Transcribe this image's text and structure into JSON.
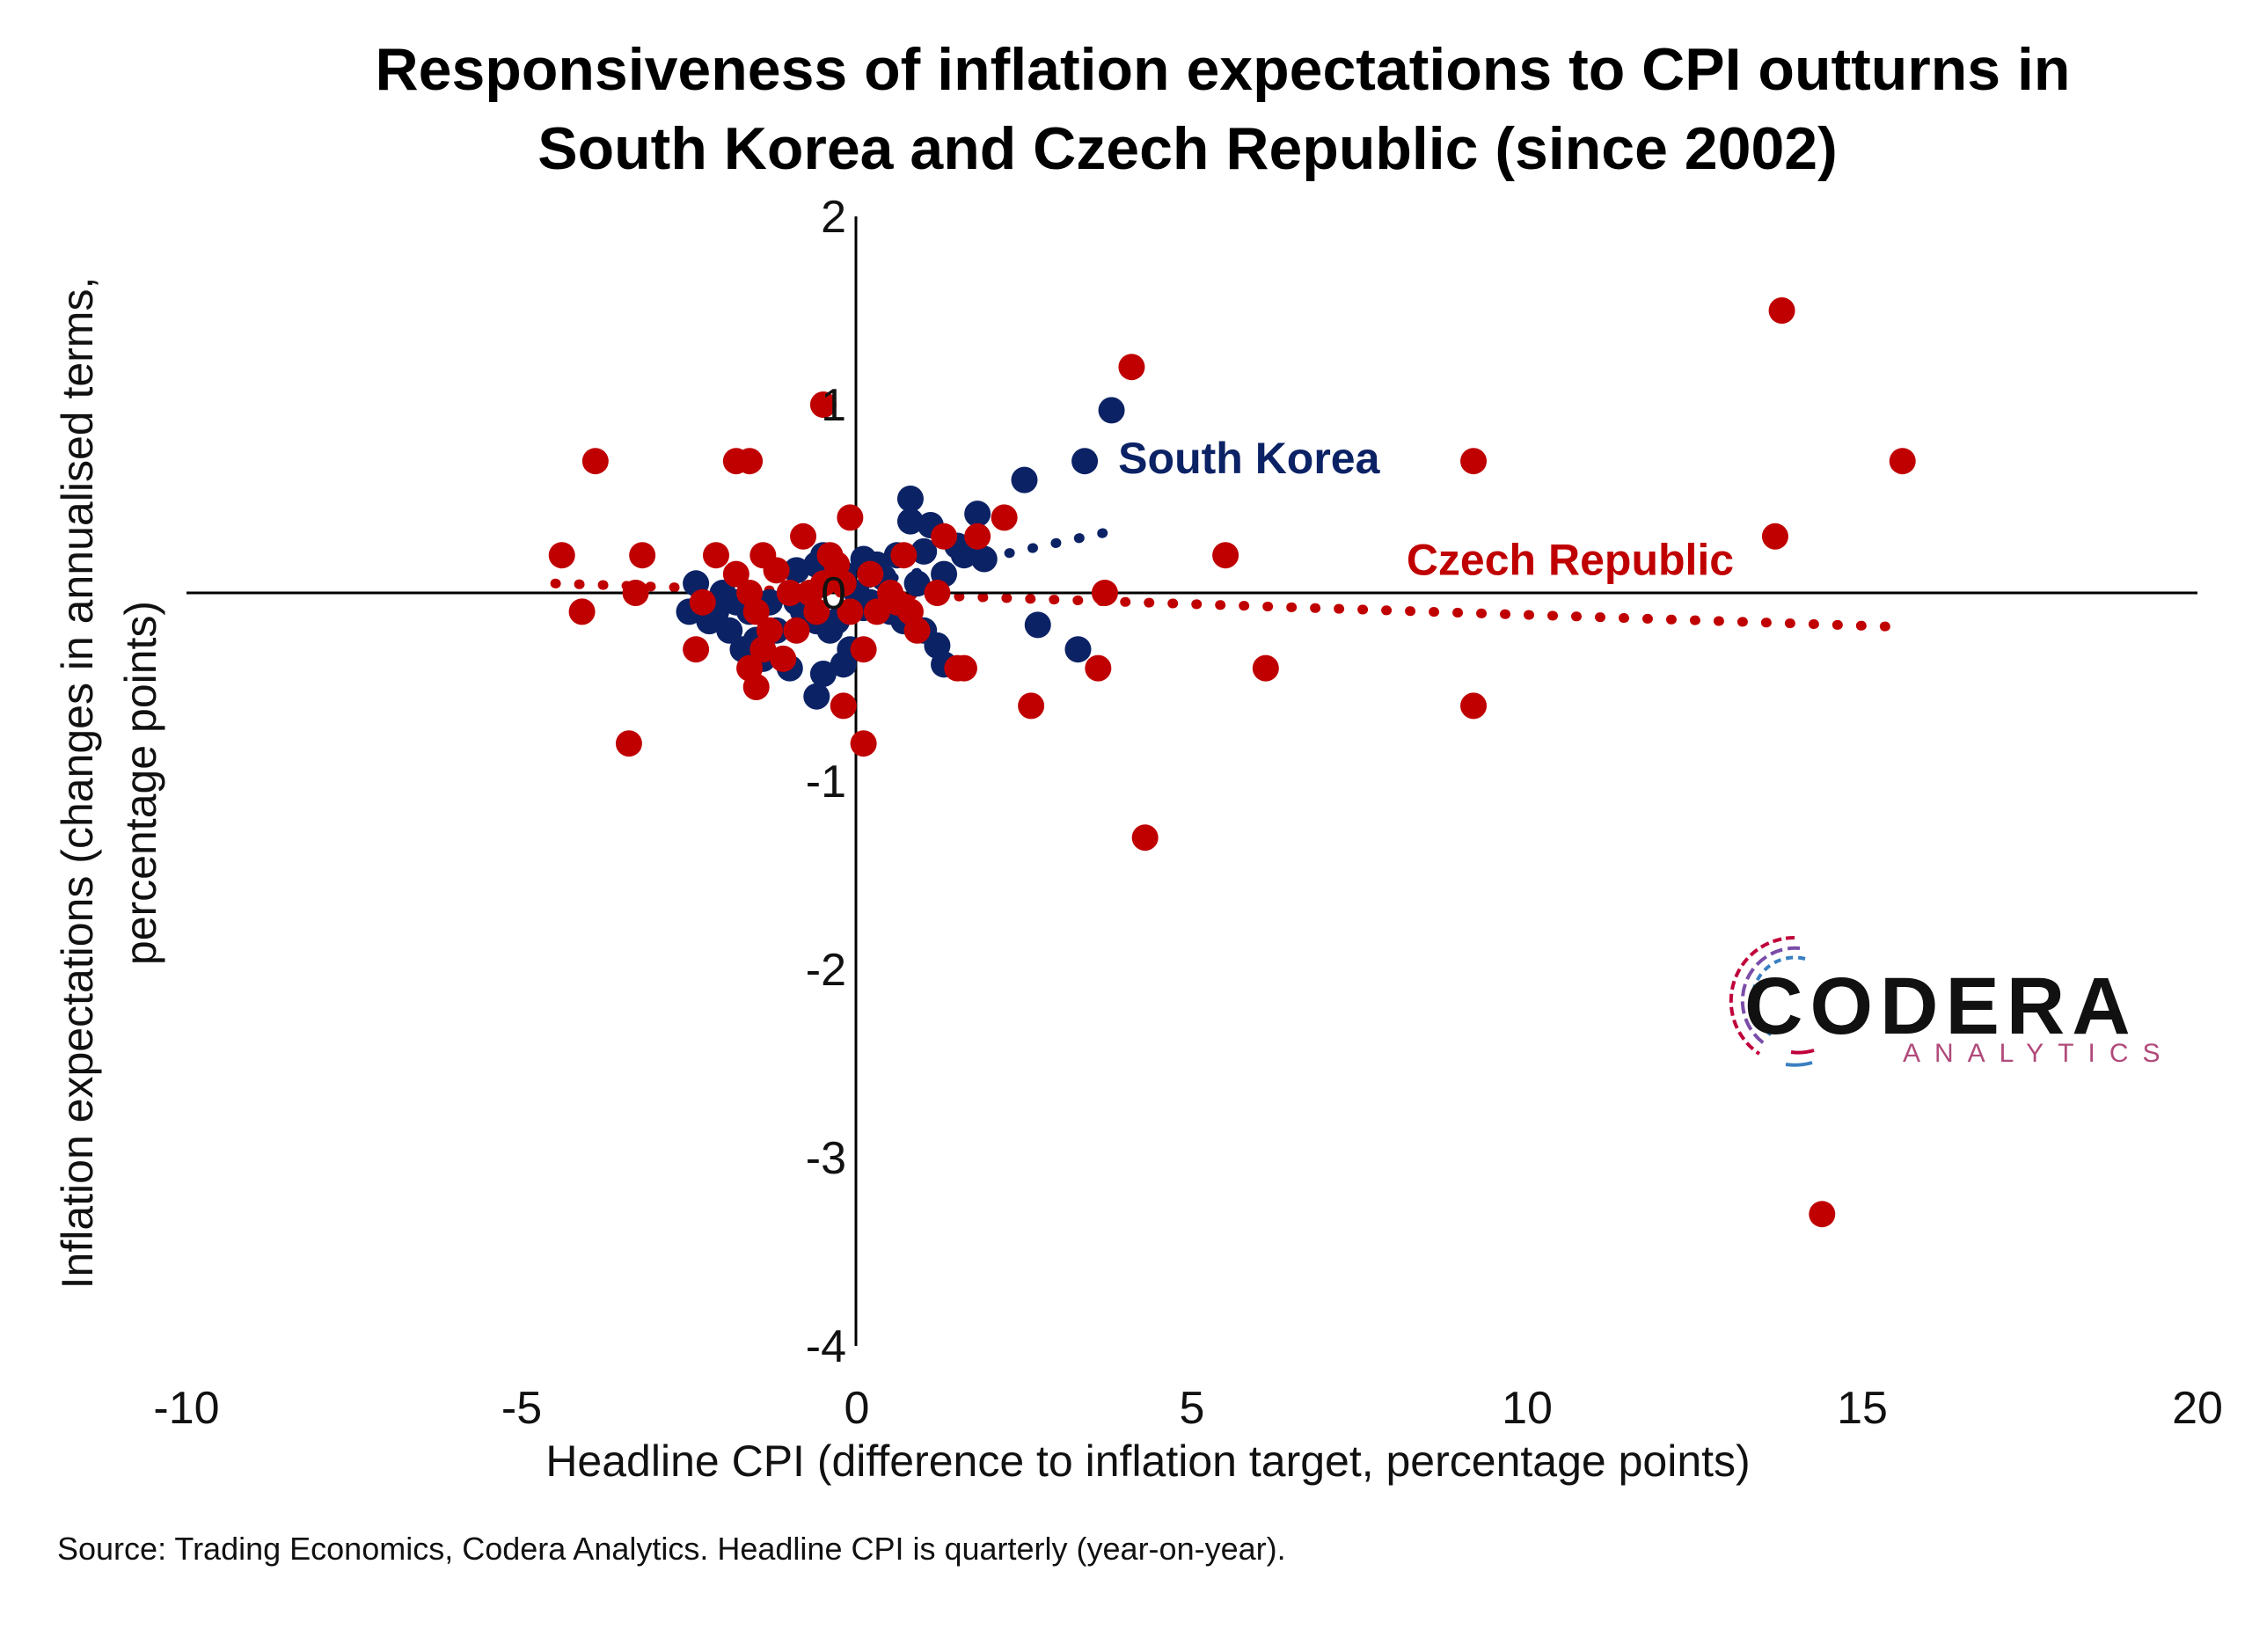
{
  "title_lines": [
    "Responsiveness of inflation expectations to CPI outturns in",
    "South Korea and Czech Republic (since 2002)"
  ],
  "source": "Source: Trading Economics, Codera Analytics. Headline CPI is quarterly (year-on-year).",
  "logo": {
    "name": "CODERA",
    "sub": "ANALYTICS"
  },
  "colors": {
    "south_korea": "#0b2265",
    "czech_republic": "#c00000",
    "logo_blue": "#3a7fc1",
    "logo_red": "#c0003a"
  },
  "chart_data": {
    "type": "scatter",
    "title": "Responsiveness of inflation expectations to CPI outturns in South Korea and Czech Republic (since 2002)",
    "xlabel": "Headline CPI (difference to inflation target, percentage points)",
    "ylabel_lines": [
      "Inflation expectations (changes in annualised terms,",
      "percentage points)"
    ],
    "xlim": [
      -10,
      20
    ],
    "ylim": [
      -4,
      2
    ],
    "xticks": [
      "-10",
      "-5",
      "0",
      "5",
      "10",
      "15",
      "20"
    ],
    "yticks": [
      "2",
      "1",
      "0",
      "-1",
      "-2",
      "-3",
      "-4"
    ],
    "grid": false,
    "legend": "inline labels",
    "series": [
      {
        "name": "South Korea",
        "color": "#0b2265",
        "label_at": [
          3.9,
          0.72
        ],
        "points": [
          [
            3.8,
            0.97
          ],
          [
            3.4,
            0.7
          ],
          [
            2.5,
            0.6
          ],
          [
            1.8,
            0.42
          ],
          [
            0.8,
            0.5
          ],
          [
            1.1,
            0.36
          ],
          [
            0.8,
            0.38
          ],
          [
            1.5,
            0.25
          ],
          [
            1.0,
            0.22
          ],
          [
            1.6,
            0.2
          ],
          [
            1.9,
            0.18
          ],
          [
            0.6,
            0.2
          ],
          [
            0.3,
            0.15
          ],
          [
            0.1,
            0.18
          ],
          [
            -0.5,
            0.2
          ],
          [
            -0.6,
            0.15
          ],
          [
            -0.9,
            0.12
          ],
          [
            -0.2,
            0.1
          ],
          [
            0.4,
            0.08
          ],
          [
            0.9,
            0.05
          ],
          [
            1.3,
            0.1
          ],
          [
            -2.4,
            0.05
          ],
          [
            -2.0,
            0.0
          ],
          [
            -1.8,
            -0.05
          ],
          [
            -2.5,
            -0.1
          ],
          [
            -2.2,
            -0.15
          ],
          [
            -1.9,
            -0.2
          ],
          [
            -1.6,
            -0.1
          ],
          [
            -1.3,
            -0.05
          ],
          [
            -1.0,
            0.0
          ],
          [
            -0.8,
            -0.1
          ],
          [
            -0.6,
            -0.15
          ],
          [
            -1.2,
            -0.2
          ],
          [
            -1.5,
            -0.25
          ],
          [
            -0.4,
            -0.2
          ],
          [
            -0.1,
            -0.3
          ],
          [
            0.2,
            -0.05
          ],
          [
            0.5,
            -0.1
          ],
          [
            0.7,
            -0.15
          ],
          [
            1.0,
            -0.2
          ],
          [
            1.2,
            -0.28
          ],
          [
            1.3,
            -0.38
          ],
          [
            2.7,
            -0.17
          ],
          [
            3.3,
            -0.3
          ],
          [
            -0.2,
            -0.38
          ],
          [
            -0.5,
            -0.43
          ],
          [
            -0.6,
            -0.55
          ],
          [
            -1.0,
            -0.4
          ],
          [
            -1.4,
            -0.35
          ],
          [
            -0.3,
            -0.15
          ],
          [
            0.0,
            0.0
          ],
          [
            -2.1,
            -0.1
          ],
          [
            -1.7,
            -0.3
          ],
          [
            -0.9,
            -0.05
          ],
          [
            0.1,
            -0.08
          ]
        ]
      },
      {
        "name": "Czech Republic",
        "color": "#c00000",
        "label_at": [
          8.2,
          0.18
        ],
        "points": [
          [
            13.8,
            1.5
          ],
          [
            4.1,
            1.2
          ],
          [
            -0.5,
            1.0
          ],
          [
            15.6,
            0.7
          ],
          [
            9.2,
            0.7
          ],
          [
            -3.9,
            0.7
          ],
          [
            -1.8,
            0.7
          ],
          [
            -1.6,
            0.7
          ],
          [
            2.2,
            0.4
          ],
          [
            -0.1,
            0.4
          ],
          [
            1.3,
            0.3
          ],
          [
            -0.8,
            0.3
          ],
          [
            1.8,
            0.3
          ],
          [
            13.7,
            0.3
          ],
          [
            5.5,
            0.2
          ],
          [
            -4.4,
            0.2
          ],
          [
            -3.2,
            0.2
          ],
          [
            -2.1,
            0.2
          ],
          [
            -1.4,
            0.2
          ],
          [
            0.7,
            0.2
          ],
          [
            -0.4,
            0.2
          ],
          [
            -1.8,
            0.1
          ],
          [
            -1.2,
            0.12
          ],
          [
            0.2,
            0.1
          ],
          [
            -0.5,
            0.05
          ],
          [
            -0.2,
            0.05
          ],
          [
            -3.3,
            0.0
          ],
          [
            -1.6,
            0.0
          ],
          [
            -1.0,
            0.0
          ],
          [
            -0.7,
            0.0
          ],
          [
            0.5,
            0.0
          ],
          [
            1.2,
            0.0
          ],
          [
            3.7,
            0.0
          ],
          [
            -4.1,
            -0.1
          ],
          [
            -2.3,
            -0.05
          ],
          [
            -1.5,
            -0.1
          ],
          [
            -0.6,
            -0.1
          ],
          [
            -0.1,
            -0.1
          ],
          [
            0.3,
            -0.1
          ],
          [
            0.8,
            -0.1
          ],
          [
            -2.4,
            -0.3
          ],
          [
            -0.9,
            -0.2
          ],
          [
            0.1,
            -0.3
          ],
          [
            0.9,
            -0.2
          ],
          [
            -1.6,
            -0.4
          ],
          [
            -1.4,
            -0.3
          ],
          [
            -1.1,
            -0.35
          ],
          [
            1.6,
            -0.4
          ],
          [
            1.5,
            -0.4
          ],
          [
            3.6,
            -0.4
          ],
          [
            6.1,
            -0.4
          ],
          [
            -1.5,
            -0.5
          ],
          [
            -0.2,
            -0.6
          ],
          [
            2.6,
            -0.6
          ],
          [
            9.2,
            -0.6
          ],
          [
            -3.4,
            -0.8
          ],
          [
            0.1,
            -0.8
          ],
          [
            4.3,
            -1.3
          ],
          [
            14.4,
            -3.3
          ],
          [
            -1.3,
            -0.2
          ],
          [
            -0.3,
            0.15
          ],
          [
            0.6,
            -0.05
          ]
        ]
      }
    ],
    "trendlines": [
      {
        "series": "South Korea",
        "x": [
          -0.5,
          3.7
        ],
        "y": [
          0.0,
          0.32
        ]
      },
      {
        "series": "Czech Republic",
        "x": [
          -4.5,
          15.5
        ],
        "y": [
          0.05,
          -0.18
        ]
      }
    ]
  }
}
